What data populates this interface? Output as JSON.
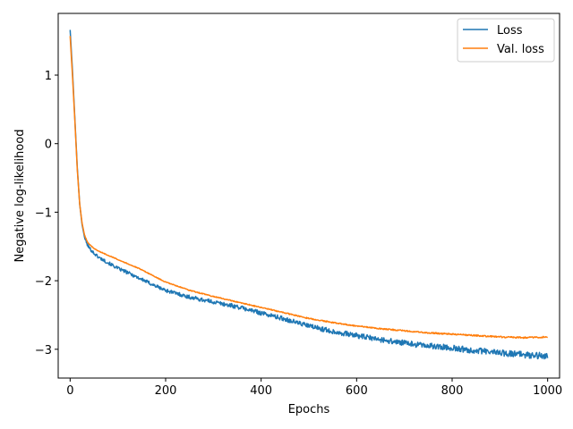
{
  "chart_data": {
    "type": "line",
    "xlabel": "Epochs",
    "ylabel": "Negative log-likelihood",
    "xlim": [
      -25,
      1025
    ],
    "ylim": [
      -3.42,
      1.9
    ],
    "xticks": [
      0,
      200,
      400,
      600,
      800,
      1000
    ],
    "yticks": [
      -3,
      -2,
      -1,
      0,
      1
    ],
    "ytick_labels": [
      "−3",
      "−2",
      "−1",
      "0",
      "1"
    ],
    "grid": false,
    "legend_position": "top-right",
    "series": [
      {
        "name": "Loss",
        "color": "#1f77b4",
        "noise": 0.022,
        "x": [
          0,
          5,
          10,
          15,
          20,
          25,
          30,
          35,
          40,
          50,
          60,
          80,
          100,
          120,
          150,
          180,
          200,
          250,
          300,
          350,
          400,
          450,
          500,
          550,
          600,
          650,
          700,
          750,
          800,
          850,
          900,
          950,
          1000
        ],
        "y": [
          1.66,
          1.05,
          0.35,
          -0.35,
          -0.88,
          -1.18,
          -1.36,
          -1.46,
          -1.52,
          -1.6,
          -1.66,
          -1.74,
          -1.82,
          -1.88,
          -1.98,
          -2.08,
          -2.14,
          -2.24,
          -2.31,
          -2.38,
          -2.47,
          -2.56,
          -2.66,
          -2.74,
          -2.8,
          -2.86,
          -2.91,
          -2.95,
          -2.98,
          -3.02,
          -3.05,
          -3.08,
          -3.1
        ]
      },
      {
        "name": "Val. loss",
        "color": "#ff7f0e",
        "noise": 0.005,
        "x": [
          0,
          5,
          10,
          15,
          20,
          25,
          30,
          35,
          40,
          50,
          60,
          80,
          100,
          120,
          150,
          180,
          200,
          250,
          300,
          350,
          400,
          450,
          500,
          550,
          600,
          650,
          700,
          750,
          800,
          850,
          900,
          950,
          1000
        ],
        "y": [
          1.57,
          0.98,
          0.32,
          -0.38,
          -0.88,
          -1.16,
          -1.33,
          -1.42,
          -1.47,
          -1.53,
          -1.57,
          -1.63,
          -1.69,
          -1.75,
          -1.84,
          -1.95,
          -2.02,
          -2.14,
          -2.23,
          -2.31,
          -2.39,
          -2.47,
          -2.55,
          -2.61,
          -2.66,
          -2.7,
          -2.73,
          -2.76,
          -2.78,
          -2.8,
          -2.82,
          -2.83,
          -2.82
        ]
      }
    ]
  }
}
